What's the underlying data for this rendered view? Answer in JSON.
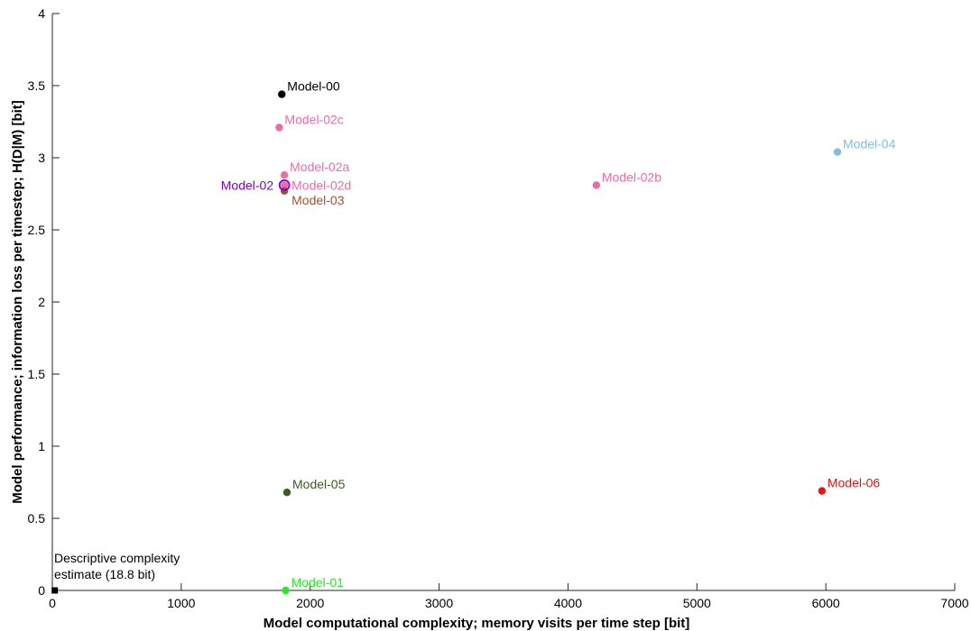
{
  "chart_data": {
    "type": "scatter",
    "xlabel": "Model computational complexity; memory visits per time step [bit]",
    "ylabel": "Model performance; information loss per timestep; H(D|M) [bit]",
    "xlim": [
      0,
      7000
    ],
    "ylim": [
      0,
      4
    ],
    "xticks": [
      0,
      1000,
      2000,
      3000,
      4000,
      5000,
      6000,
      7000
    ],
    "yticks": [
      0,
      0.5,
      1,
      1.5,
      2,
      2.5,
      3,
      3.5,
      4
    ],
    "grid": false,
    "points": [
      {
        "label": "Model-00",
        "x": 1780,
        "y": 3.44,
        "color": "#000000",
        "label_pos": "upper-right"
      },
      {
        "label": "Model-02c",
        "x": 1760,
        "y": 3.21,
        "color": "#ee6aa8",
        "label_pos": "upper-right"
      },
      {
        "label": "Model-02a",
        "x": 1800,
        "y": 2.88,
        "color": "#ee6aa8",
        "label_pos": "upper-right"
      },
      {
        "label": "Model-02d",
        "x": 1800,
        "y": 2.81,
        "color": "#ee6aa8",
        "label_pos": "right"
      },
      {
        "label": "Model-02",
        "x": 1800,
        "y": 2.81,
        "color": "#7b00d4",
        "label_pos": "left",
        "marker": "open-circle"
      },
      {
        "label": "Model-03",
        "x": 1800,
        "y": 2.77,
        "color": "#a0522d",
        "label_pos": "lower-right"
      },
      {
        "label": "Model-02b",
        "x": 4220,
        "y": 2.81,
        "color": "#ee6aa8",
        "label_pos": "upper-right"
      },
      {
        "label": "Model-04",
        "x": 6090,
        "y": 3.04,
        "color": "#7ec0df",
        "label_pos": "upper-right"
      },
      {
        "label": "Model-05",
        "x": 1820,
        "y": 0.68,
        "color": "#3d5a1f",
        "label_pos": "upper-right"
      },
      {
        "label": "Model-06",
        "x": 5970,
        "y": 0.69,
        "color": "#ee1111",
        "label_pos": "upper-right"
      },
      {
        "label": "Model-01",
        "x": 1810,
        "y": 0.0,
        "color": "#22ee22",
        "label_pos": "upper-right"
      }
    ],
    "annotation": {
      "lines": [
        "Descriptive complexity",
        "estimate (18.8 bit)"
      ],
      "x": 18.8,
      "y": 0,
      "marker": "square",
      "color": "#000000"
    }
  }
}
